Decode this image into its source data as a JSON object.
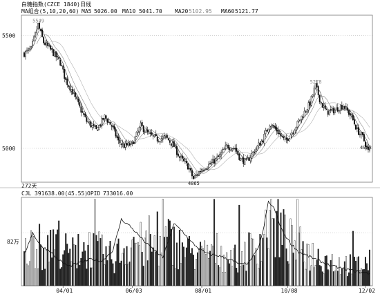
{
  "chart_data": {
    "type": "candlestick",
    "title": "白糖指数(CZCE 1840)日线",
    "period_label": "272天",
    "ma_legend": {
      "label": "MA组合(5,10,20,60)",
      "items": [
        {
          "name": "MA5",
          "value": "5026.00"
        },
        {
          "name": "MA10",
          "value": "5041.70"
        },
        {
          "name": "MA20",
          "value": "5102.95"
        },
        {
          "name": "MA60",
          "value": "5121.77"
        }
      ]
    },
    "price_axis": {
      "ticks": [
        {
          "value": 5000,
          "label": "5000"
        },
        {
          "value": 5500,
          "label": "5500"
        }
      ],
      "ylim": [
        4850,
        5590
      ]
    },
    "annotations": [
      {
        "label": "5549",
        "value": 5549,
        "index": 10
      },
      {
        "label": "5278",
        "value": 5278,
        "index": 210
      },
      {
        "label": "4865",
        "value": 4865,
        "index": 122
      },
      {
        "label": "4988",
        "value": 4988,
        "index": 246
      }
    ],
    "volume_panel": {
      "label": "CJL",
      "cjl_value": "391638.00(45.55)",
      "opid_label": "OPID",
      "opid_value": "733016.00",
      "axis_tick_label": "82万",
      "ylim": [
        0,
        100
      ]
    },
    "x_ticks": [
      {
        "index": 28,
        "label": "04/01"
      },
      {
        "index": 78,
        "label": "06/03"
      },
      {
        "index": 128,
        "label": "08/01"
      },
      {
        "index": 190,
        "label": "10/08"
      },
      {
        "index": 246,
        "label": "12/02"
      }
    ],
    "price_keypoints": [
      [
        0,
        5420
      ],
      [
        5,
        5440
      ],
      [
        10,
        5549
      ],
      [
        14,
        5470
      ],
      [
        20,
        5430
      ],
      [
        26,
        5380
      ],
      [
        30,
        5300
      ],
      [
        35,
        5250
      ],
      [
        40,
        5180
      ],
      [
        45,
        5120
      ],
      [
        52,
        5080
      ],
      [
        58,
        5140
      ],
      [
        63,
        5100
      ],
      [
        68,
        5030
      ],
      [
        72,
        5010
      ],
      [
        78,
        5020
      ],
      [
        84,
        5100
      ],
      [
        90,
        5060
      ],
      [
        96,
        5040
      ],
      [
        102,
        5050
      ],
      [
        108,
        5010
      ],
      [
        112,
        4960
      ],
      [
        118,
        4920
      ],
      [
        122,
        4865
      ],
      [
        128,
        4910
      ],
      [
        134,
        4930
      ],
      [
        140,
        4960
      ],
      [
        146,
        5010
      ],
      [
        152,
        5000
      ],
      [
        156,
        4950
      ],
      [
        160,
        4940
      ],
      [
        166,
        4990
      ],
      [
        172,
        5040
      ],
      [
        177,
        5110
      ],
      [
        182,
        5080
      ],
      [
        188,
        5030
      ],
      [
        194,
        5080
      ],
      [
        200,
        5140
      ],
      [
        206,
        5200
      ],
      [
        210,
        5278
      ],
      [
        214,
        5200
      ],
      [
        218,
        5160
      ],
      [
        224,
        5170
      ],
      [
        230,
        5190
      ],
      [
        236,
        5140
      ],
      [
        240,
        5080
      ],
      [
        244,
        5050
      ],
      [
        248,
        4988
      ]
    ],
    "volume_keypoints": [
      [
        0,
        40
      ],
      [
        8,
        55
      ],
      [
        16,
        40
      ],
      [
        24,
        60
      ],
      [
        32,
        38
      ],
      [
        40,
        45
      ],
      [
        48,
        50
      ],
      [
        56,
        42
      ],
      [
        64,
        35
      ],
      [
        72,
        48
      ],
      [
        80,
        60
      ],
      [
        88,
        45
      ],
      [
        96,
        52
      ],
      [
        104,
        58
      ],
      [
        112,
        50
      ],
      [
        120,
        42
      ],
      [
        128,
        38
      ],
      [
        136,
        46
      ],
      [
        144,
        40
      ],
      [
        152,
        35
      ],
      [
        160,
        44
      ],
      [
        168,
        50
      ],
      [
        176,
        80
      ],
      [
        184,
        70
      ],
      [
        192,
        55
      ],
      [
        200,
        48
      ],
      [
        208,
        40
      ],
      [
        216,
        35
      ],
      [
        224,
        30
      ],
      [
        232,
        28
      ],
      [
        240,
        26
      ],
      [
        248,
        30
      ]
    ],
    "opid_keypoints": [
      [
        0,
        35
      ],
      [
        6,
        60
      ],
      [
        12,
        45
      ],
      [
        18,
        40
      ],
      [
        24,
        30
      ],
      [
        32,
        22
      ],
      [
        40,
        26
      ],
      [
        48,
        30
      ],
      [
        56,
        28
      ],
      [
        64,
        40
      ],
      [
        70,
        75
      ],
      [
        76,
        68
      ],
      [
        82,
        58
      ],
      [
        88,
        48
      ],
      [
        94,
        40
      ],
      [
        100,
        32
      ],
      [
        108,
        70
      ],
      [
        114,
        62
      ],
      [
        120,
        50
      ],
      [
        126,
        42
      ],
      [
        132,
        36
      ],
      [
        140,
        34
      ],
      [
        148,
        30
      ],
      [
        156,
        24
      ],
      [
        162,
        26
      ],
      [
        168,
        40
      ],
      [
        172,
        60
      ],
      [
        176,
        95
      ],
      [
        180,
        88
      ],
      [
        186,
        62
      ],
      [
        192,
        48
      ],
      [
        198,
        38
      ],
      [
        204,
        34
      ],
      [
        210,
        30
      ],
      [
        216,
        26
      ],
      [
        222,
        22
      ],
      [
        228,
        20
      ],
      [
        234,
        18
      ],
      [
        240,
        16
      ],
      [
        248,
        14
      ]
    ]
  }
}
